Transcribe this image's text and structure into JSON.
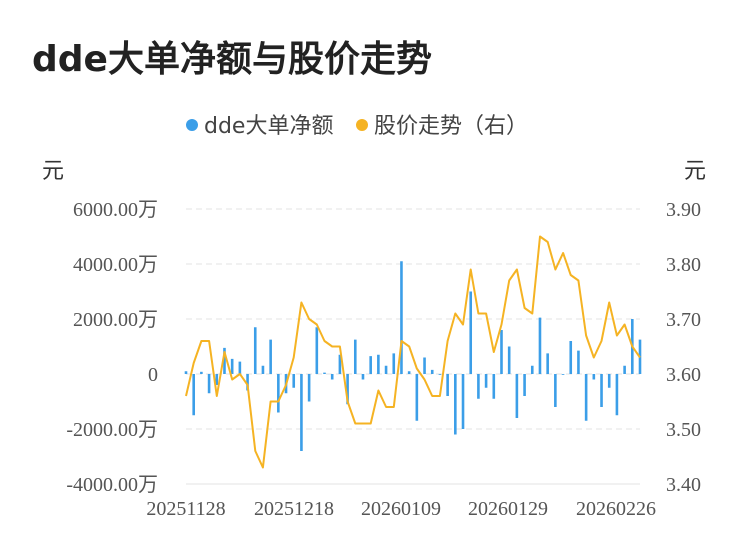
{
  "title": "dde大单净额与股价走势",
  "legend": [
    {
      "name": "dde大单净额",
      "color": "#3b9ee8"
    },
    {
      "name": "股价走势（右）",
      "color": "#f5b323"
    }
  ],
  "y_left_unit": "元",
  "y_right_unit": "元",
  "chart_data": {
    "type": "bar+line",
    "title": "dde大单净额与股价走势",
    "x_tick_labels": [
      "20251128",
      "20251218",
      "20260109",
      "20260129",
      "20260226"
    ],
    "y_left": {
      "ticks": [
        "-4000.00万",
        "-2000.00万",
        "0",
        "2000.00万",
        "4000.00万",
        "6000.00万"
      ],
      "range": [
        -4000,
        6000
      ],
      "unit": "万元"
    },
    "y_right": {
      "ticks": [
        "3.40",
        "3.50",
        "3.60",
        "3.70",
        "3.80",
        "3.90"
      ],
      "range": [
        3.4,
        3.9
      ],
      "unit": "元"
    },
    "grid": true,
    "legend_position": "top-center",
    "series": [
      {
        "name": "dde大单净额",
        "type": "bar",
        "color": "#3b9ee8",
        "values": [
          100,
          -1500,
          80,
          -700,
          -400,
          950,
          550,
          450,
          -600,
          1700,
          300,
          1250,
          -1400,
          -700,
          -500,
          -2800,
          -1000,
          1700,
          50,
          -200,
          700,
          -1100,
          1250,
          -200,
          650,
          700,
          300,
          750,
          4100,
          100,
          -1700,
          600,
          150,
          0,
          -800,
          -2200,
          -2000,
          3000,
          -900,
          -500,
          -900,
          1600,
          1000,
          -1600,
          -800,
          300,
          2050,
          750,
          -1200,
          0,
          1200,
          850,
          -1700,
          -200,
          -1200,
          -500,
          -1500,
          300,
          2000,
          1250
        ]
      },
      {
        "name": "股价走势（右）",
        "type": "line",
        "color": "#f5b323",
        "values": [
          3.56,
          3.62,
          3.66,
          3.66,
          3.56,
          3.64,
          3.59,
          3.6,
          3.58,
          3.46,
          3.43,
          3.55,
          3.55,
          3.58,
          3.63,
          3.73,
          3.7,
          3.69,
          3.66,
          3.65,
          3.65,
          3.55,
          3.51,
          3.51,
          3.51,
          3.57,
          3.54,
          3.54,
          3.66,
          3.65,
          3.61,
          3.59,
          3.56,
          3.56,
          3.66,
          3.71,
          3.69,
          3.79,
          3.71,
          3.71,
          3.64,
          3.69,
          3.77,
          3.79,
          3.72,
          3.71,
          3.85,
          3.84,
          3.79,
          3.82,
          3.78,
          3.77,
          3.67,
          3.63,
          3.66,
          3.73,
          3.67,
          3.69,
          3.65,
          3.63
        ]
      }
    ]
  }
}
